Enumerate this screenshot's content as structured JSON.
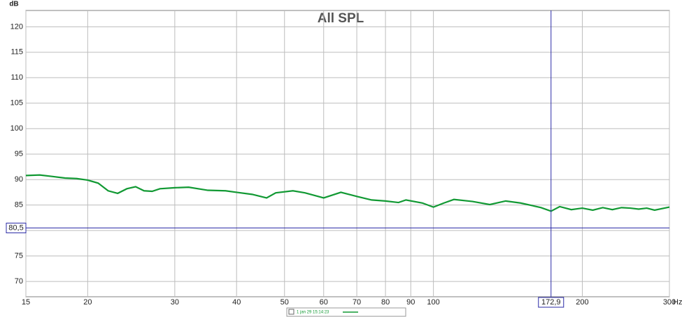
{
  "chart_data": {
    "type": "line",
    "title": "All SPL",
    "y_label": "dB",
    "x_label": "Hz",
    "x_scale": "log",
    "grid": true,
    "xlim": [
      15,
      300
    ],
    "ylim": [
      67,
      123.2
    ],
    "xticks": [
      15,
      20,
      30,
      40,
      50,
      60,
      70,
      80,
      90,
      100,
      200,
      300
    ],
    "yticks": [
      70,
      75,
      80,
      85,
      90,
      95,
      100,
      105,
      110,
      115,
      120
    ],
    "series": [
      {
        "name": "1 jan 29 15:14:23",
        "color": "#119933",
        "x": [
          15,
          16,
          17,
          18,
          19,
          20,
          21,
          22,
          23,
          24,
          25,
          26,
          27,
          28,
          30,
          32,
          35,
          38,
          40,
          43,
          46,
          48,
          52,
          55,
          60,
          65,
          70,
          75,
          80,
          85,
          88,
          95,
          100,
          105,
          110,
          120,
          130,
          140,
          150,
          160,
          165,
          172.9,
          180,
          190,
          200,
          210,
          220,
          230,
          240,
          250,
          260,
          270,
          280,
          300
        ],
        "values": [
          90.8,
          90.9,
          90.6,
          90.3,
          90.2,
          89.9,
          89.3,
          87.8,
          87.3,
          88.2,
          88.6,
          87.8,
          87.7,
          88.2,
          88.4,
          88.5,
          87.9,
          87.8,
          87.5,
          87.1,
          86.4,
          87.4,
          87.8,
          87.4,
          86.4,
          87.5,
          86.7,
          86.0,
          85.8,
          85.5,
          86.0,
          85.4,
          84.6,
          85.4,
          86.1,
          85.7,
          85.1,
          85.8,
          85.4,
          84.8,
          84.5,
          83.8,
          84.7,
          84.1,
          84.4,
          84.0,
          84.5,
          84.1,
          84.5,
          84.4,
          84.2,
          84.4,
          84.0,
          84.6
        ]
      }
    ],
    "cursor": {
      "color": "#2b2ba6",
      "x": {
        "value": 172.9,
        "label": "172,9"
      },
      "y": {
        "value": 80.5,
        "label": "80,5"
      }
    }
  }
}
